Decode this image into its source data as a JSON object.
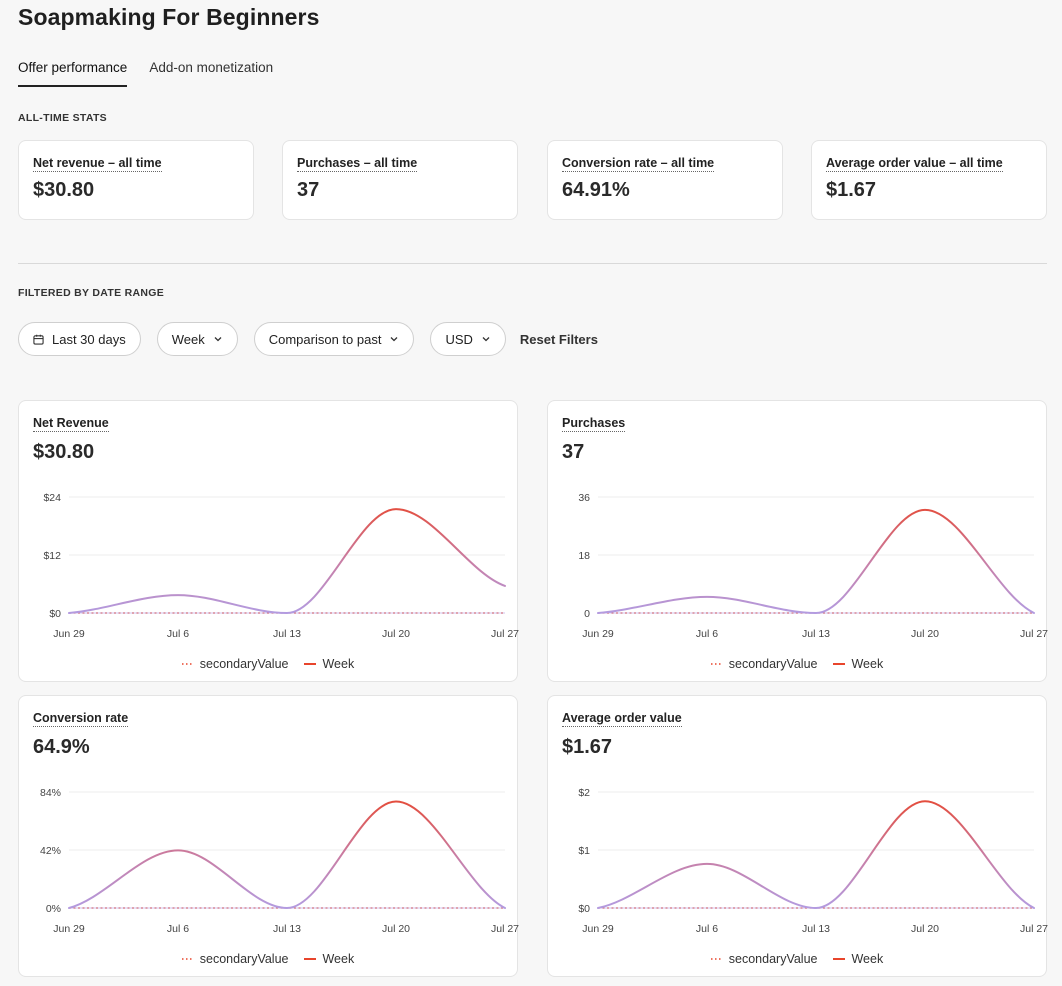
{
  "page": {
    "title": "Soapmaking For Beginners"
  },
  "tabs": [
    {
      "label": "Offer performance",
      "active": true
    },
    {
      "label": "Add-on monetization",
      "active": false
    }
  ],
  "all_time": {
    "section_label": "ALL-TIME STATS",
    "cards": [
      {
        "label": "Net revenue – all time",
        "value": "$30.80"
      },
      {
        "label": "Purchases – all time",
        "value": "37"
      },
      {
        "label": "Conversion rate – all time",
        "value": "64.91%"
      },
      {
        "label": "Average order value – all time",
        "value": "$1.67"
      }
    ]
  },
  "filtered": {
    "section_label": "FILTERED BY DATE RANGE",
    "filters": {
      "date_range": "Last 30 days",
      "interval": "Week",
      "comparison": "Comparison to past",
      "currency": "USD",
      "reset": "Reset Filters"
    }
  },
  "colors": {
    "week_line": "#e8452c",
    "secondary_line": "#e8452c",
    "overlap_line": "#b39be0"
  },
  "chart_data": [
    {
      "type": "line",
      "title": "Net Revenue",
      "headline": "$30.80",
      "x": [
        "Jun 29",
        "Jul 6",
        "Jul 13",
        "Jul 20",
        "Jul 27"
      ],
      "yticks": [
        "$0",
        "$12",
        "$24"
      ],
      "ylim": [
        0,
        24
      ],
      "series": [
        {
          "name": "secondaryValue",
          "values": [
            0,
            0,
            0,
            0,
            0
          ]
        },
        {
          "name": "Week",
          "values": [
            0,
            3.7,
            0,
            21.5,
            5.6
          ]
        }
      ],
      "legend": "bottom"
    },
    {
      "type": "line",
      "title": "Purchases",
      "headline": "37",
      "x": [
        "Jun 29",
        "Jul 6",
        "Jul 13",
        "Jul 20",
        "Jul 27"
      ],
      "yticks": [
        "0",
        "18",
        "36"
      ],
      "ylim": [
        0,
        36
      ],
      "series": [
        {
          "name": "secondaryValue",
          "values": [
            0,
            0,
            0,
            0,
            0
          ]
        },
        {
          "name": "Week",
          "values": [
            0,
            5,
            0,
            32,
            0
          ]
        }
      ],
      "legend": "bottom"
    },
    {
      "type": "line",
      "title": "Conversion rate",
      "headline": "64.9%",
      "x": [
        "Jun 29",
        "Jul 6",
        "Jul 13",
        "Jul 20",
        "Jul 27"
      ],
      "yticks": [
        "0%",
        "42%",
        "84%"
      ],
      "ylim": [
        0,
        84
      ],
      "series": [
        {
          "name": "secondaryValue",
          "values": [
            0,
            0,
            0,
            0,
            0
          ]
        },
        {
          "name": "Week",
          "values": [
            0,
            41.7,
            0,
            77.1,
            0
          ]
        }
      ],
      "legend": "bottom"
    },
    {
      "type": "line",
      "title": "Average order value",
      "headline": "$1.67",
      "x": [
        "Jun 29",
        "Jul 6",
        "Jul 13",
        "Jul 20",
        "Jul 27"
      ],
      "yticks": [
        "$0",
        "$1",
        "$2"
      ],
      "ylim": [
        0,
        2
      ],
      "series": [
        {
          "name": "secondaryValue",
          "values": [
            0,
            0,
            0,
            0,
            0
          ]
        },
        {
          "name": "Week",
          "values": [
            0,
            0.76,
            0,
            1.84,
            0
          ]
        }
      ],
      "legend": "bottom"
    }
  ]
}
